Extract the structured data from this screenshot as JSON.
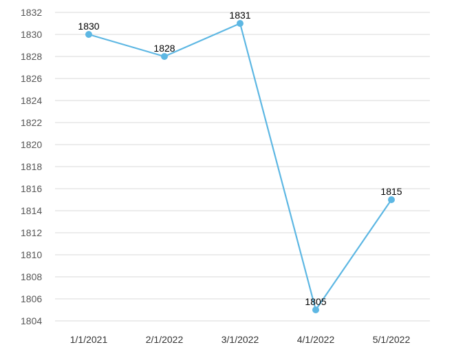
{
  "chart_data": {
    "type": "line",
    "title": "",
    "xlabel": "",
    "ylabel": "",
    "categories": [
      "1/1/2021",
      "2/1/2022",
      "3/1/2022",
      "4/1/2022",
      "5/1/2022"
    ],
    "series": [
      {
        "values": [
          1830,
          1828,
          1831,
          1805,
          1815
        ],
        "color": "#5db7e3"
      }
    ],
    "ylim": [
      1804,
      1832
    ],
    "yticks": [
      1804,
      1806,
      1808,
      1810,
      1812,
      1814,
      1816,
      1818,
      1820,
      1822,
      1824,
      1826,
      1828,
      1830,
      1832
    ],
    "grid": true,
    "legend": "none",
    "data_labels": true
  }
}
